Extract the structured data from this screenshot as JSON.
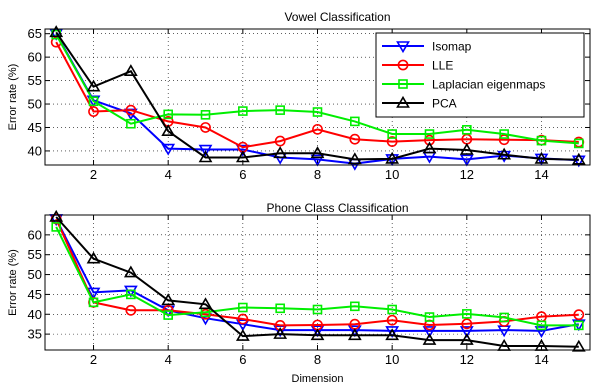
{
  "chart_data": [
    {
      "type": "line",
      "title": "Vowel Classification",
      "xlabel": "",
      "ylabel": "Error rate (%)",
      "xlim": [
        0.7,
        15.3
      ],
      "ylim": [
        37,
        66
      ],
      "x": [
        1,
        2,
        3,
        4,
        5,
        6,
        7,
        8,
        9,
        10,
        11,
        12,
        13,
        14,
        15
      ],
      "xticks": [
        2,
        4,
        6,
        8,
        10,
        12,
        14
      ],
      "yticks": [
        40,
        45,
        50,
        55,
        60,
        65
      ],
      "grid": true,
      "legend_position": "top-right",
      "series": [
        {
          "name": "Isomap",
          "color": "#0000ff",
          "marker": "triangle-down",
          "values": [
            65,
            50.8,
            48,
            40.5,
            40.3,
            40.3,
            38.6,
            38.2,
            37.3,
            38.3,
            38.8,
            38.2,
            39,
            38.4,
            38
          ]
        },
        {
          "name": "LLE",
          "color": "#ff0000",
          "marker": "circle",
          "values": [
            63.2,
            48.4,
            48.7,
            46.3,
            45,
            40.8,
            42.1,
            44.6,
            42.5,
            42,
            42.3,
            42.5,
            42.4,
            42.3,
            41.9
          ]
        },
        {
          "name": "Laplacian eigenmaps",
          "color": "#00ee00",
          "marker": "square",
          "values": [
            64.8,
            50.6,
            45.8,
            47.8,
            47.7,
            48.5,
            48.7,
            48.3,
            46.3,
            43.6,
            43.6,
            44.5,
            43.6,
            42.2,
            41.6
          ]
        },
        {
          "name": "PCA",
          "color": "#000000",
          "marker": "triangle-up",
          "values": [
            65.3,
            53.7,
            57,
            44.2,
            38.6,
            38.6,
            39.5,
            39.5,
            38.2,
            38.3,
            40.5,
            40.2,
            39.2,
            38.3,
            38.1
          ]
        }
      ]
    },
    {
      "type": "line",
      "title": "Phone Class Classification",
      "xlabel": "Dimension",
      "ylabel": "Error rate (%)",
      "xlim": [
        0.7,
        15.3
      ],
      "ylim": [
        31,
        65
      ],
      "x": [
        1,
        2,
        3,
        4,
        5,
        6,
        7,
        8,
        9,
        10,
        11,
        12,
        13,
        14,
        15
      ],
      "xticks": [
        2,
        4,
        6,
        8,
        10,
        12,
        14
      ],
      "yticks": [
        35,
        40,
        45,
        50,
        55,
        60
      ],
      "grid": true,
      "legend_position": "none",
      "series": [
        {
          "name": "Isomap",
          "color": "#0000ff",
          "marker": "triangle-down",
          "values": [
            64,
            45.5,
            46,
            41,
            39,
            37.5,
            36,
            36,
            36,
            35.8,
            35.8,
            35.8,
            36,
            35.8,
            37.5
          ]
        },
        {
          "name": "LLE",
          "color": "#ff0000",
          "marker": "circle",
          "values": [
            64,
            43,
            41,
            41,
            40,
            38.8,
            37.2,
            37.3,
            37.5,
            38.5,
            37.3,
            37.6,
            38.2,
            39.4,
            39.9
          ]
        },
        {
          "name": "Laplacian eigenmaps",
          "color": "#00ee00",
          "marker": "square",
          "values": [
            62,
            43,
            45,
            39.8,
            40.5,
            41.7,
            41.5,
            41.2,
            42,
            41.2,
            39.3,
            40.1,
            39.2,
            37.2,
            37.2
          ]
        },
        {
          "name": "PCA",
          "color": "#000000",
          "marker": "triangle-up",
          "values": [
            64.5,
            54,
            50.5,
            43.5,
            42.5,
            34.5,
            35,
            34.7,
            34.7,
            34.7,
            33.5,
            33.5,
            32,
            32,
            31.8
          ]
        }
      ]
    }
  ]
}
